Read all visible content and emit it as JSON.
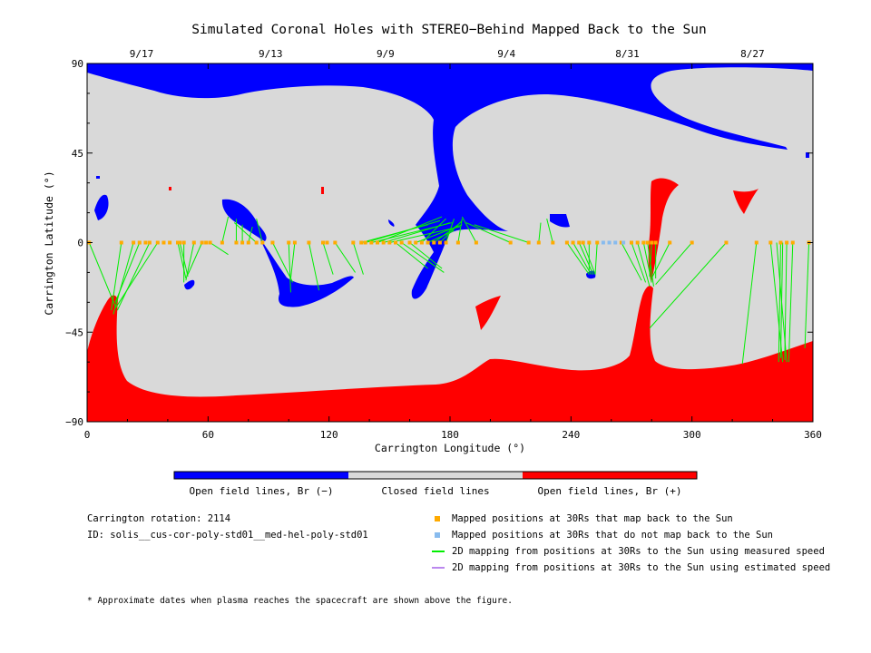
{
  "chart_data": {
    "type": "scatter",
    "title": "Simulated Coronal Holes with STEREO−Behind Mapped Back to the Sun",
    "xlabel": "Carrington Longitude (°)",
    "ylabel": "Carrington Latitude (°)",
    "xlim": [
      0,
      360
    ],
    "ylim": [
      -90,
      90
    ],
    "x_ticks": [
      "0",
      "60",
      "120",
      "180",
      "240",
      "300",
      "360"
    ],
    "y_ticks": [
      "90",
      "45",
      "0",
      "−45",
      "−90"
    ],
    "top_axis": {
      "labels": [
        "9/17",
        "9/13",
        "9/9",
        "9/4",
        "8/31",
        "8/27"
      ],
      "longitudes": [
        27,
        91,
        148,
        208,
        268,
        330
      ]
    },
    "colorbar": {
      "segments": [
        {
          "label": "Open field lines, Br (−)",
          "color": "#0000ff"
        },
        {
          "label": "Closed field lines",
          "color": "#d9d9d9"
        },
        {
          "label": "Open field lines, Br (+)",
          "color": "#ff0000"
        }
      ]
    },
    "colors": {
      "open_negative": "#0000ff",
      "closed": "#d9d9d9",
      "open_positive": "#ff0000",
      "mapped_point": "#ffaa00",
      "unmapped_point": "#88bbee",
      "measured_line": "#00ee00",
      "estimated_line": "#bb88ee"
    },
    "series": [
      {
        "name": "Mapped positions at 30Rs that map back to the Sun",
        "marker": "square",
        "color": "#ffaa00",
        "points": [
          [
            1,
            0
          ],
          [
            17,
            0
          ],
          [
            23,
            0
          ],
          [
            26,
            0
          ],
          [
            29,
            0
          ],
          [
            31,
            0
          ],
          [
            35,
            0
          ],
          [
            38,
            0
          ],
          [
            41,
            0
          ],
          [
            45,
            0
          ],
          [
            46,
            0
          ],
          [
            48,
            0
          ],
          [
            53,
            0
          ],
          [
            57,
            0
          ],
          [
            59,
            0
          ],
          [
            61,
            0
          ],
          [
            67,
            0
          ],
          [
            74,
            0
          ],
          [
            77,
            0
          ],
          [
            80,
            0
          ],
          [
            84,
            0
          ],
          [
            87,
            0
          ],
          [
            92,
            0
          ],
          [
            100,
            0
          ],
          [
            103,
            0
          ],
          [
            110,
            0
          ],
          [
            117,
            0
          ],
          [
            119,
            0
          ],
          [
            123,
            0
          ],
          [
            132,
            0
          ],
          [
            136,
            0
          ],
          [
            138,
            0
          ],
          [
            141,
            0
          ],
          [
            144,
            0
          ],
          [
            147,
            0
          ],
          [
            150,
            0
          ],
          [
            153,
            0
          ],
          [
            156,
            0
          ],
          [
            160,
            0
          ],
          [
            163,
            0
          ],
          [
            166,
            0
          ],
          [
            169,
            0
          ],
          [
            172,
            0
          ],
          [
            175,
            0
          ],
          [
            178,
            0
          ],
          [
            184,
            0
          ],
          [
            193,
            0
          ],
          [
            210,
            0
          ],
          [
            219,
            0
          ],
          [
            224,
            0
          ],
          [
            231,
            0
          ],
          [
            238,
            0
          ],
          [
            241,
            0
          ],
          [
            244,
            0
          ],
          [
            246,
            0
          ],
          [
            249,
            0
          ],
          [
            253,
            0
          ],
          [
            265,
            0
          ],
          [
            270,
            0
          ],
          [
            273,
            0
          ],
          [
            276,
            0
          ],
          [
            278,
            0
          ],
          [
            280,
            0
          ],
          [
            282,
            0
          ],
          [
            289,
            0
          ],
          [
            300,
            0
          ],
          [
            317,
            0
          ],
          [
            332,
            0
          ],
          [
            339,
            0
          ],
          [
            344,
            0
          ],
          [
            347,
            0
          ],
          [
            350,
            0
          ],
          [
            358,
            0
          ]
        ]
      },
      {
        "name": "Mapped positions at 30Rs that do not map back to the Sun",
        "marker": "square",
        "color": "#88bbee",
        "points": [
          [
            256,
            0
          ],
          [
            259,
            0
          ],
          [
            262,
            0
          ],
          [
            266,
            0
          ]
        ]
      }
    ],
    "mapping_lines": {
      "name": "2D mapping from positions at 30Rs to the Sun using measured speed",
      "color": "#00ee00",
      "segments": [
        [
          [
            1,
            0
          ],
          [
            14,
            -32
          ]
        ],
        [
          [
            17,
            0
          ],
          [
            12,
            -34
          ]
        ],
        [
          [
            23,
            0
          ],
          [
            13,
            -36
          ]
        ],
        [
          [
            26,
            0
          ],
          [
            14,
            -30
          ]
        ],
        [
          [
            31,
            0
          ],
          [
            15,
            -34
          ]
        ],
        [
          [
            35,
            0
          ],
          [
            14,
            -33
          ]
        ],
        [
          [
            45,
            0
          ],
          [
            49,
            -18
          ]
        ],
        [
          [
            46,
            0
          ],
          [
            50,
            -17
          ]
        ],
        [
          [
            48,
            0
          ],
          [
            48,
            -20
          ]
        ],
        [
          [
            57,
            0
          ],
          [
            50,
            -16
          ]
        ],
        [
          [
            53,
            0
          ],
          [
            49,
            -19
          ]
        ],
        [
          [
            61,
            0
          ],
          [
            70,
            -6
          ]
        ],
        [
          [
            67,
            0
          ],
          [
            70,
            13
          ]
        ],
        [
          [
            74,
            0
          ],
          [
            74,
            12
          ]
        ],
        [
          [
            77,
            0
          ],
          [
            77,
            9
          ]
        ],
        [
          [
            80,
            0
          ],
          [
            82,
            8
          ]
        ],
        [
          [
            84,
            0
          ],
          [
            73,
            10
          ]
        ],
        [
          [
            87,
            0
          ],
          [
            84,
            12
          ]
        ],
        [
          [
            92,
            0
          ],
          [
            102,
            -20
          ]
        ],
        [
          [
            100,
            0
          ],
          [
            101,
            -25
          ]
        ],
        [
          [
            103,
            0
          ],
          [
            101,
            -18
          ]
        ],
        [
          [
            110,
            0
          ],
          [
            115,
            -24
          ]
        ],
        [
          [
            117,
            0
          ],
          [
            122,
            -16
          ]
        ],
        [
          [
            123,
            0
          ],
          [
            133,
            -15
          ]
        ],
        [
          [
            132,
            0
          ],
          [
            137,
            -16
          ]
        ],
        [
          [
            136,
            0
          ],
          [
            169,
            9
          ]
        ],
        [
          [
            138,
            0
          ],
          [
            175,
            11
          ]
        ],
        [
          [
            141,
            0
          ],
          [
            181,
            10
          ]
        ],
        [
          [
            144,
            0
          ],
          [
            176,
            13
          ]
        ],
        [
          [
            147,
            0
          ],
          [
            180,
            10
          ]
        ],
        [
          [
            150,
            0
          ],
          [
            185,
            8
          ]
        ],
        [
          [
            153,
            0
          ],
          [
            169,
            -13
          ]
        ],
        [
          [
            156,
            0
          ],
          [
            177,
            -15
          ]
        ],
        [
          [
            160,
            0
          ],
          [
            176,
            -13
          ]
        ],
        [
          [
            163,
            0
          ],
          [
            186,
            9
          ]
        ],
        [
          [
            166,
            0
          ],
          [
            178,
            12
          ]
        ],
        [
          [
            169,
            0
          ],
          [
            182,
            6
          ]
        ],
        [
          [
            172,
            0
          ],
          [
            184,
            9
          ]
        ],
        [
          [
            175,
            0
          ],
          [
            186,
            11
          ]
        ],
        [
          [
            178,
            0
          ],
          [
            182,
            12
          ]
        ],
        [
          [
            184,
            0
          ],
          [
            186,
            12
          ]
        ],
        [
          [
            193,
            0
          ],
          [
            186,
            13
          ]
        ],
        [
          [
            210,
            0
          ],
          [
            188,
            10
          ]
        ],
        [
          [
            219,
            0
          ],
          [
            192,
            9
          ]
        ],
        [
          [
            224,
            0
          ],
          [
            225,
            10
          ]
        ],
        [
          [
            231,
            0
          ],
          [
            228,
            12
          ]
        ],
        [
          [
            238,
            0
          ],
          [
            249,
            -16
          ]
        ],
        [
          [
            241,
            0
          ],
          [
            250,
            -16
          ]
        ],
        [
          [
            244,
            0
          ],
          [
            251,
            -16
          ]
        ],
        [
          [
            246,
            0
          ],
          [
            252,
            -16
          ]
        ],
        [
          [
            249,
            0
          ],
          [
            249,
            -15
          ]
        ],
        [
          [
            253,
            0
          ],
          [
            252,
            -16
          ]
        ],
        [
          [
            265,
            0
          ],
          [
            275,
            -19
          ]
        ],
        [
          [
            270,
            0
          ],
          [
            277,
            -20
          ]
        ],
        [
          [
            273,
            0
          ],
          [
            279,
            -22
          ]
        ],
        [
          [
            276,
            0
          ],
          [
            280,
            -20
          ]
        ],
        [
          [
            278,
            0
          ],
          [
            281,
            -22
          ]
        ],
        [
          [
            280,
            0
          ],
          [
            279,
            -17
          ]
        ],
        [
          [
            282,
            0
          ],
          [
            282,
            -18
          ]
        ],
        [
          [
            289,
            0
          ],
          [
            280,
            -18
          ]
        ],
        [
          [
            300,
            0
          ],
          [
            282,
            -21
          ]
        ],
        [
          [
            317,
            0
          ],
          [
            279,
            -43
          ]
        ],
        [
          [
            332,
            0
          ],
          [
            325,
            -61
          ]
        ],
        [
          [
            339,
            0
          ],
          [
            345,
            -60
          ]
        ],
        [
          [
            344,
            0
          ],
          [
            343,
            -60
          ]
        ],
        [
          [
            347,
            0
          ],
          [
            346,
            -59
          ]
        ],
        [
          [
            350,
            0
          ],
          [
            348,
            -60
          ]
        ],
        [
          [
            358,
            0
          ],
          [
            356,
            -53
          ]
        ],
        [
          [
            342,
            0
          ],
          [
            347,
            -60
          ]
        ],
        [
          [
            345,
            0
          ],
          [
            344,
            -58
          ]
        ]
      ]
    },
    "legend": [
      {
        "label": "Mapped positions at 30Rs that map back to the Sun",
        "kind": "square",
        "color": "#ffaa00"
      },
      {
        "label": "Mapped positions at 30Rs that do not map back to the Sun",
        "kind": "square",
        "color": "#88bbee"
      },
      {
        "label": "2D mapping from positions at 30Rs to the Sun using measured speed",
        "kind": "line",
        "color": "#00ee00"
      },
      {
        "label": "2D mapping from positions at 30Rs to the Sun using estimated speed",
        "kind": "line",
        "color": "#bb88ee"
      }
    ],
    "grid": false
  },
  "info": {
    "rotation": "Carrington rotation: 2114",
    "id": "ID: solis__cus-cor-poly-std01__med-hel-poly-std01",
    "footnote": "* Approximate dates when plasma reaches the spacecraft are shown above the figure."
  }
}
